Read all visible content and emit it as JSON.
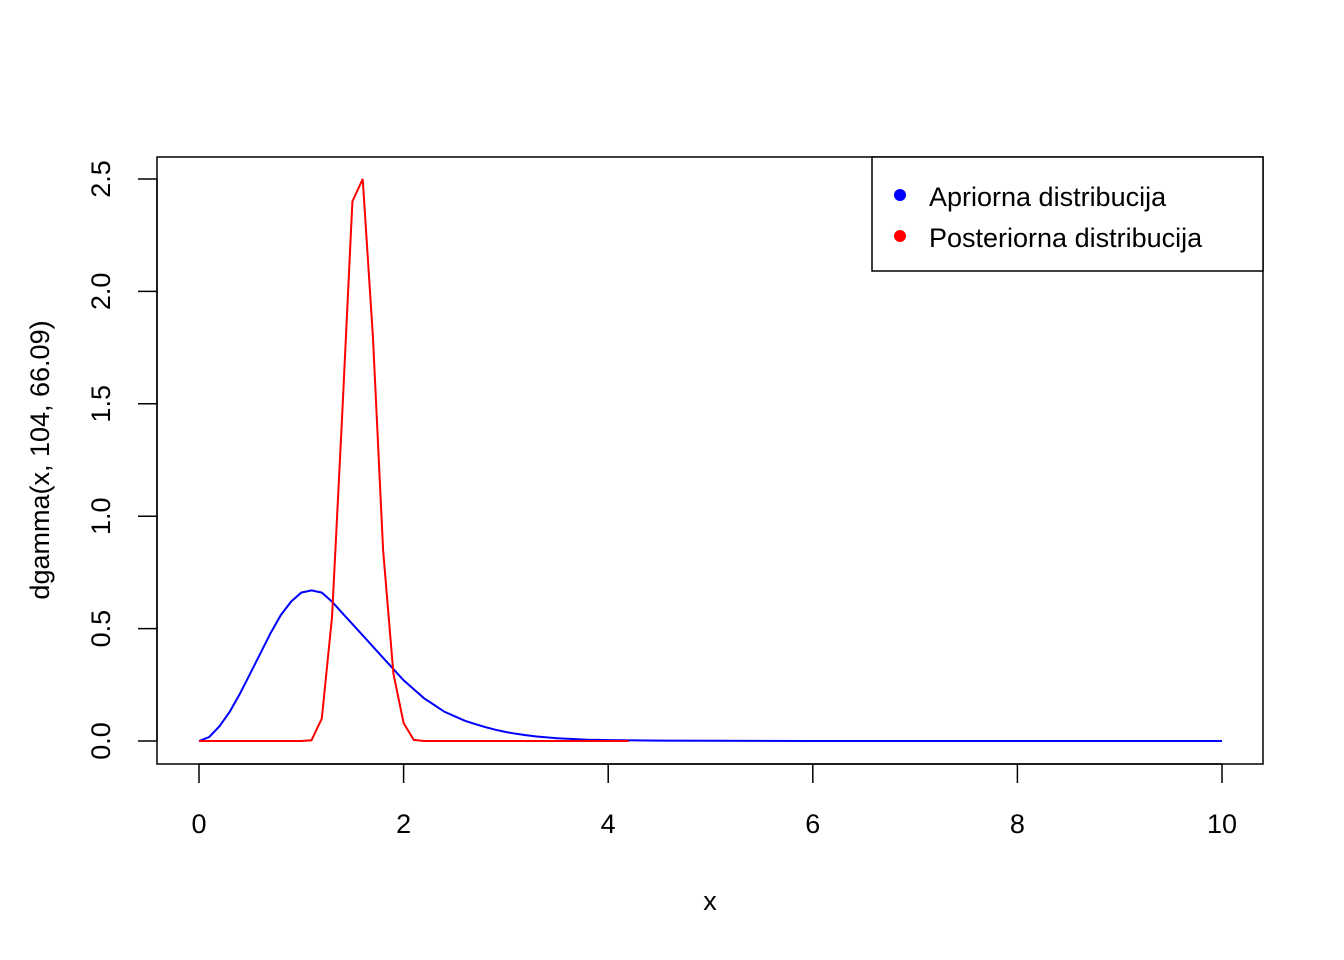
{
  "chart_data": {
    "type": "line",
    "xlabel": "x",
    "ylabel": "dgamma(x, 104, 66.09)",
    "xlim": [
      0,
      10
    ],
    "ylim": [
      0,
      2.5
    ],
    "x_ticks": [
      "0",
      "2",
      "4",
      "6",
      "8",
      "10"
    ],
    "y_ticks": [
      "0.0",
      "0.5",
      "1.0",
      "1.5",
      "2.0",
      "2.5"
    ],
    "grid": false,
    "legend_position": "top-right",
    "series": [
      {
        "name": "Apriorna distribucija",
        "color": "#0000ff",
        "x": [
          0,
          0.1,
          0.2,
          0.3,
          0.4,
          0.5,
          0.6,
          0.7,
          0.8,
          0.9,
          1.0,
          1.1,
          1.2,
          1.3,
          1.4,
          1.5,
          1.6,
          1.7,
          1.8,
          1.9,
          2.0,
          2.1,
          2.2,
          2.3,
          2.4,
          2.5,
          2.6,
          2.7,
          2.8,
          2.9,
          3.0,
          3.1,
          3.2,
          3.3,
          3.4,
          3.5,
          3.6,
          3.7,
          3.8,
          3.9,
          4.0,
          4.5,
          5.0,
          6.0,
          7.0,
          8.0,
          9.0,
          10.0
        ],
        "y": [
          0,
          0.018,
          0.066,
          0.13,
          0.21,
          0.3,
          0.39,
          0.48,
          0.56,
          0.62,
          0.66,
          0.67,
          0.66,
          0.62,
          0.57,
          0.52,
          0.47,
          0.42,
          0.37,
          0.32,
          0.27,
          0.23,
          0.19,
          0.16,
          0.13,
          0.11,
          0.09,
          0.075,
          0.062,
          0.05,
          0.04,
          0.032,
          0.026,
          0.02,
          0.016,
          0.012,
          0.01,
          0.008,
          0.006,
          0.005,
          0.004,
          0.002,
          0.001,
          0,
          0,
          0,
          0,
          0
        ]
      },
      {
        "name": "Posteriorna distribucija",
        "color": "#ff0000",
        "x": [
          0,
          1.0,
          1.1,
          1.2,
          1.3,
          1.4,
          1.5,
          1.6,
          1.7,
          1.8,
          1.9,
          2.0,
          2.1,
          2.2,
          4.2
        ],
        "y": [
          0,
          0,
          0.003,
          0.1,
          0.55,
          1.45,
          2.4,
          2.5,
          1.8,
          0.85,
          0.3,
          0.08,
          0.005,
          0,
          0
        ]
      }
    ]
  }
}
